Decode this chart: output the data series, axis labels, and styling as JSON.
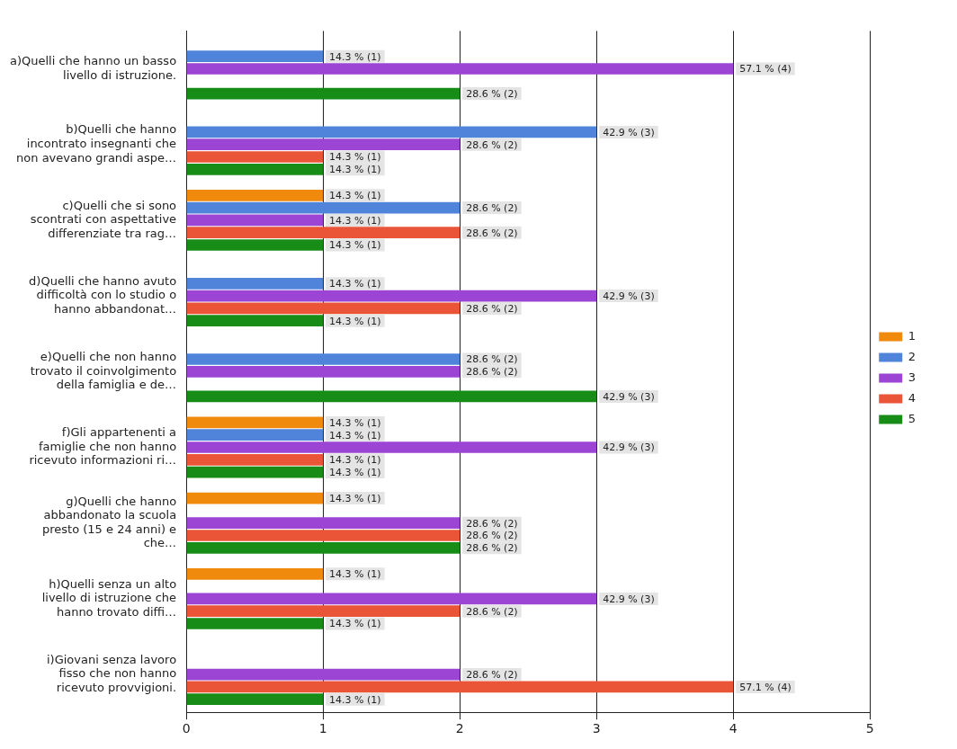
{
  "chart_data": {
    "type": "bar",
    "orientation": "horizontal",
    "categories": [
      "a)Quelli che hanno un basso livello di istruzione.",
      "b)Quelli che hanno incontrato insegnanti che non avevano grandi aspe…",
      "c)Quelli che si sono scontrati con aspettative differenziate tra rag…",
      "d)Quelli che hanno avuto difficoltà con lo studio o hanno abbandonat…",
      "e)Quelli che non hanno trovato il coinvolgimento della famiglia e de…",
      "f)Gli appartenenti a famiglie che non hanno ricevuto informazioni ri…",
      "g)Quelli che hanno abbandonato la scuola presto (15 e 24 anni) e che…",
      "h)Quelli senza un alto livello di istruzione che hanno trovato diffi…",
      "i)Giovani senza lavoro fisso che non hanno ricevuto provvigioni."
    ],
    "series": [
      {
        "name": "1",
        "color": "#f08a0c",
        "values": [
          null,
          null,
          1,
          null,
          null,
          1,
          1,
          1,
          null
        ],
        "value_labels": [
          null,
          null,
          "14.3 % (1)",
          null,
          null,
          "14.3 % (1)",
          "14.3 % (1)",
          "14.3 % (1)",
          null
        ]
      },
      {
        "name": "2",
        "color": "#4f84da",
        "values": [
          1,
          3,
          2,
          1,
          2,
          1,
          null,
          null,
          null
        ],
        "value_labels": [
          "14.3 % (1)",
          "42.9 % (3)",
          "28.6 % (2)",
          "14.3 % (1)",
          "28.6 % (2)",
          "14.3 % (1)",
          null,
          null,
          null
        ]
      },
      {
        "name": "3",
        "color": "#9c44d4",
        "values": [
          4,
          2,
          1,
          3,
          2,
          3,
          2,
          3,
          2
        ],
        "value_labels": [
          "57.1 % (4)",
          "28.6 % (2)",
          "14.3 % (1)",
          "42.9 % (3)",
          "28.6 % (2)",
          "42.9 % (3)",
          "28.6 % (2)",
          "42.9 % (3)",
          "28.6 % (2)"
        ]
      },
      {
        "name": "4",
        "color": "#ea5538",
        "values": [
          null,
          1,
          2,
          2,
          null,
          1,
          2,
          2,
          4
        ],
        "value_labels": [
          null,
          "14.3 % (1)",
          "28.6 % (2)",
          "28.6 % (2)",
          null,
          "14.3 % (1)",
          "28.6 % (2)",
          "28.6 % (2)",
          "57.1 % (4)"
        ]
      },
      {
        "name": "5",
        "color": "#178c17",
        "values": [
          2,
          1,
          1,
          1,
          3,
          1,
          2,
          1,
          1
        ],
        "value_labels": [
          "28.6 % (2)",
          "14.3 % (1)",
          "14.3 % (1)",
          "14.3 % (1)",
          "42.9 % (3)",
          "14.3 % (1)",
          "28.6 % (2)",
          "14.3 % (1)",
          "14.3 % (1)"
        ]
      }
    ],
    "xlim": [
      0,
      5
    ],
    "xticks": [
      0,
      1,
      2,
      3,
      4,
      5
    ],
    "grid": "x",
    "legend": "right"
  }
}
